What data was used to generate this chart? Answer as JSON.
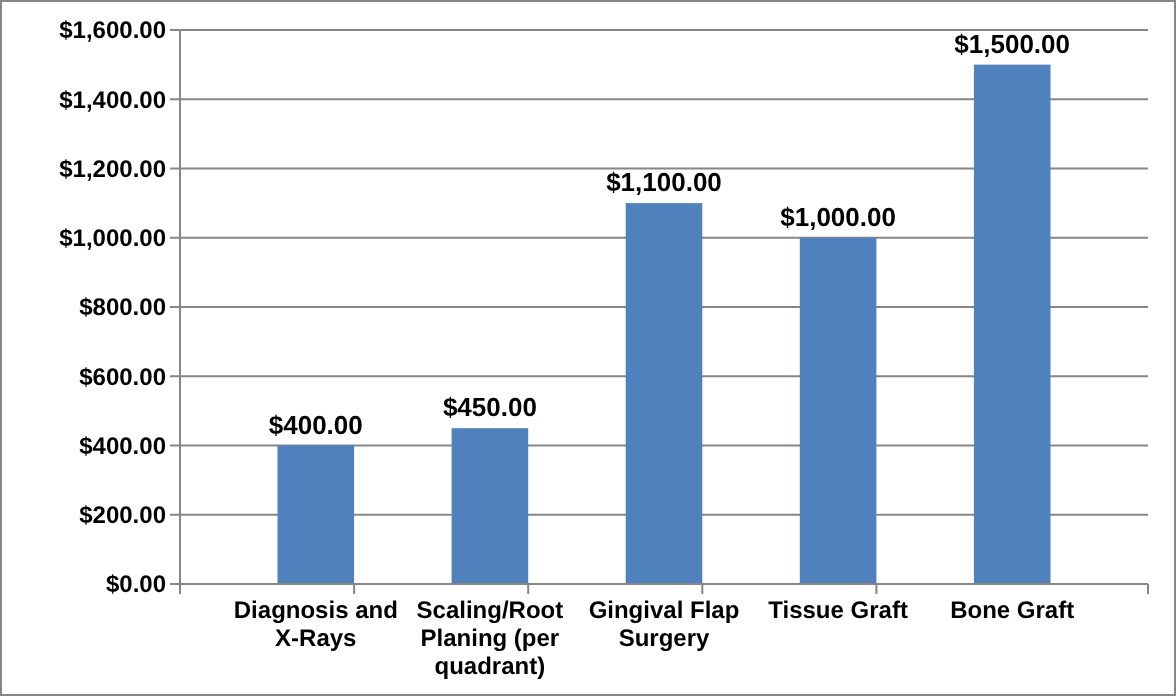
{
  "chart_data": {
    "type": "bar",
    "categories": [
      "Diagnosis and X-Rays",
      "Scaling/Root Planing (per quadrant)",
      "Gingival Flap Surgery",
      "Tissue Graft",
      "Bone Graft"
    ],
    "values": [
      400,
      450,
      1100,
      1000,
      1500
    ],
    "value_labels": [
      "$400.00",
      "$450.00",
      "$1,100.00",
      "$1,000.00",
      "$1,500.00"
    ],
    "color": "#4f81bd",
    "ylim": [
      0,
      1600
    ],
    "yticks": [
      {
        "value": 0,
        "label": "$0.00"
      },
      {
        "value": 200,
        "label": "$200.00"
      },
      {
        "value": 400,
        "label": "$400.00"
      },
      {
        "value": 600,
        "label": "$600.00"
      },
      {
        "value": 800,
        "label": "$800.00"
      },
      {
        "value": 1000,
        "label": "$1,000.00"
      },
      {
        "value": 1200,
        "label": "$1,200.00"
      },
      {
        "value": 1400,
        "label": "$1,400.00"
      },
      {
        "value": 1600,
        "label": "$1,600.00"
      }
    ],
    "grid": "y"
  }
}
